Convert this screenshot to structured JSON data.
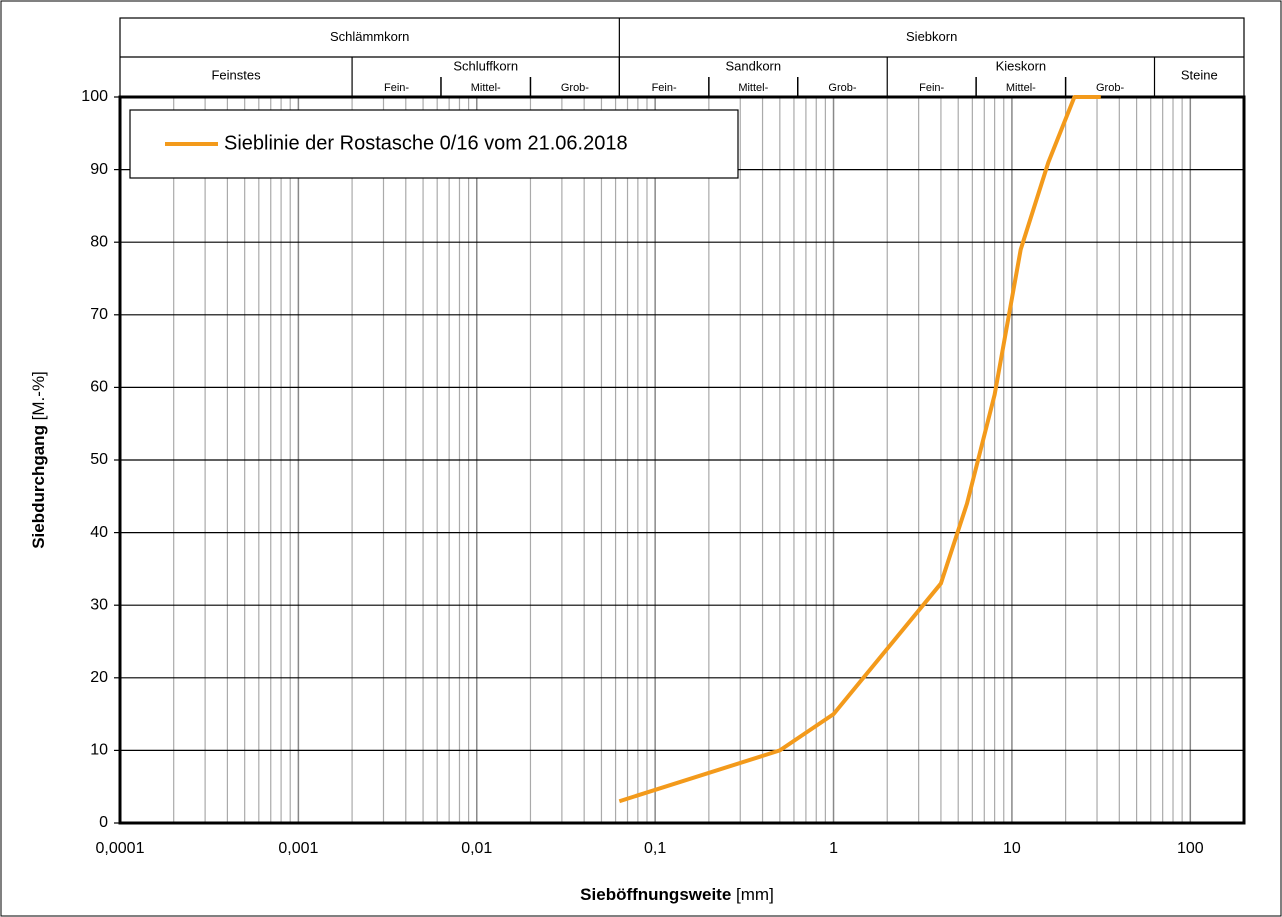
{
  "chart_data": {
    "type": "line",
    "x_log": true,
    "grid": true,
    "xlim": [
      0.0001,
      200
    ],
    "ylim": [
      0,
      100
    ],
    "xticks": [
      {
        "value": 0.0001,
        "label": "0,0001"
      },
      {
        "value": 0.001,
        "label": "0,001"
      },
      {
        "value": 0.01,
        "label": "0,01"
      },
      {
        "value": 0.1,
        "label": "0,1"
      },
      1,
      10,
      100
    ],
    "x_minor_ticks": [
      0.0002,
      0.0003,
      0.0004,
      0.0005,
      0.0006,
      0.0007,
      0.0008,
      0.0009,
      0.002,
      0.003,
      0.004,
      0.005,
      0.006,
      0.007,
      0.008,
      0.009,
      0.02,
      0.03,
      0.04,
      0.05,
      0.06,
      0.07,
      0.08,
      0.09,
      0.2,
      0.3,
      0.4,
      0.5,
      0.6,
      0.7,
      0.8,
      0.9,
      2,
      3,
      4,
      5,
      6,
      7,
      8,
      9,
      20,
      30,
      40,
      50,
      60,
      70,
      80,
      90
    ],
    "yticks": [
      0,
      10,
      20,
      30,
      40,
      50,
      60,
      70,
      80,
      90,
      100
    ],
    "xlabel": {
      "name": "Sieböffnungsweite",
      "unit": "[mm]"
    },
    "ylabel": {
      "name": "Siebdurchgang",
      "unit": "[M.-%]"
    },
    "x": [
      0.063,
      0.5,
      1,
      2,
      4,
      5.6,
      8,
      11.2,
      16,
      22.4,
      31.5
    ],
    "series": [
      {
        "name": "Sieblinie der Rostasche 0/16 vom 21.06.2018",
        "color": "#f39a1b",
        "values": [
          3,
          10,
          15,
          24,
          33,
          44,
          59,
          79,
          91,
          100,
          100
        ]
      }
    ],
    "soil_classes": {
      "top": [
        {
          "label": "Schlämmkorn",
          "from": 0.0001,
          "to": 0.063
        },
        {
          "label": "Siebkorn",
          "from": 0.063,
          "to": 200
        }
      ],
      "groups": [
        {
          "label": "Feinstes",
          "from": 0.0001,
          "to": 0.002
        },
        {
          "label": "Schluffkorn",
          "from": 0.002,
          "to": 0.063,
          "sub": [
            "Fein-",
            "Mittel-",
            "Grob-"
          ],
          "bounds": [
            0.0063,
            0.02
          ]
        },
        {
          "label": "Sandkorn",
          "from": 0.063,
          "to": 2,
          "sub": [
            "Fein-",
            "Mittel-",
            "Grob-"
          ],
          "bounds": [
            0.2,
            0.63
          ]
        },
        {
          "label": "Kieskorn",
          "from": 2,
          "to": 63,
          "sub": [
            "Fein-",
            "Mittel-",
            "Grob-"
          ],
          "bounds": [
            6.3,
            20
          ]
        },
        {
          "label": "Steine",
          "from": 63,
          "to": 200
        }
      ]
    }
  }
}
